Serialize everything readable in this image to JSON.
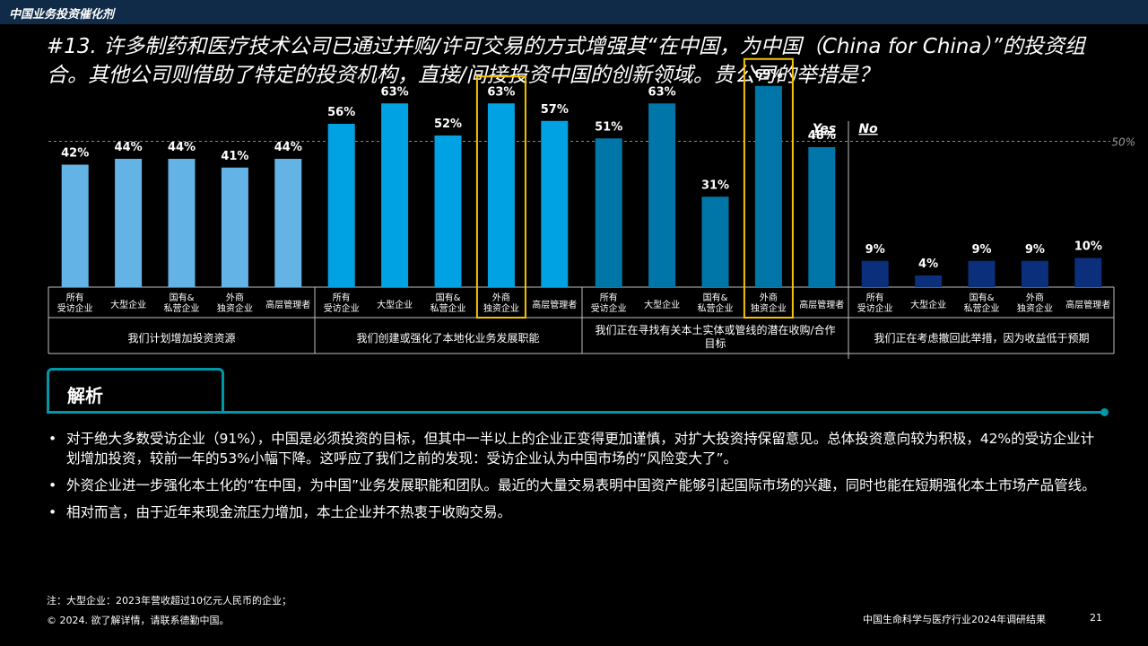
{
  "header": {
    "section_title": "中国业务投资催化剂"
  },
  "question": "#13. 许多制药和医疗技术公司已通过并购/许可交易的方式增强其“在中国，为中国（China for China）”的投资组合。其他公司则借助了特定的投资机构，直接/间接投资中国的创新领域。贵公司的举措是？",
  "chart_data": {
    "type": "bar",
    "legend": {
      "yes": "Yes",
      "no": "No"
    },
    "reference_line": {
      "value": 50,
      "label": "50%"
    },
    "ylim": [
      0,
      100
    ],
    "groups": [
      {
        "label": "我们计划增加投资资源",
        "answer": "yes",
        "color": "#63b3e6",
        "categories": [
          "所有\n受访企业",
          "大型企业",
          "国有&\n私营企业",
          "外商\n独资企业",
          "高层管理者"
        ],
        "values": [
          42,
          44,
          44,
          41,
          44
        ],
        "highlight_index": -1
      },
      {
        "label": "我们创建或强化了本地化业务发展职能",
        "answer": "yes",
        "color": "#00a2e3",
        "categories": [
          "所有\n受访企业",
          "大型企业",
          "国有&\n私营企业",
          "外商\n独资企业",
          "高层管理者"
        ],
        "values": [
          56,
          63,
          52,
          63,
          57
        ],
        "highlight_index": 3
      },
      {
        "label": "我们正在寻找有关本土实体或管线的潜在收购/合作目标",
        "answer": "yes",
        "color": "#0076a8",
        "categories": [
          "所有\n受访企业",
          "大型企业",
          "国有&\n私营企业",
          "外商\n独资企业",
          "高层管理者"
        ],
        "values": [
          51,
          63,
          31,
          69,
          48
        ],
        "highlight_index": 3
      },
      {
        "label": "我们正在考虑撤回此举措，因为收益低于预期",
        "answer": "no",
        "color": "#0b2f7a",
        "categories": [
          "所有\n受访企业",
          "大型企业",
          "国有&\n私营企业",
          "外商\n独资企业",
          "高层管理者"
        ],
        "values": [
          9,
          4,
          9,
          9,
          10
        ],
        "highlight_index": -1
      }
    ]
  },
  "analysis": {
    "title": "解析",
    "bullets": [
      "对于绝大多数受访企业（91%），中国是必须投资的目标，但其中一半以上的企业正变得更加谨慎，对扩大投资持保留意见。总体投资意向较为积极，42%的受访企业计划增加投资，较前一年的53%小幅下降。这呼应了我们之前的发现：受访企业认为中国市场的“风险变大了”。",
      "外资企业进一步强化本土化的“在中国，为中国”业务发展职能和团队。最近的大量交易表明中国资产能够引起国际市场的兴趣，同时也能在短期强化本土市场产品管线。",
      "相对而言，由于近年来现金流压力增加，本土企业并不热衷于收购交易。"
    ]
  },
  "footer": {
    "note": "注：大型企业：2023年营收超过10亿元人民币的企业；",
    "copyright": "© 2024. 欲了解详情，请联系德勤中国。",
    "report_title": "中国生命科学与医疗行业2024年调研结果",
    "page_number": "21"
  }
}
